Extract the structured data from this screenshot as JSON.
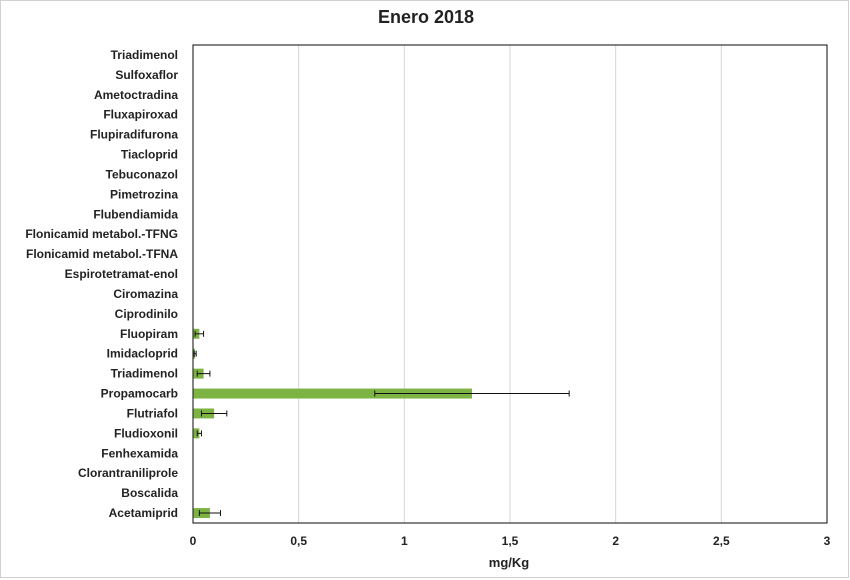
{
  "chart_data": {
    "type": "bar",
    "orientation": "horizontal",
    "title": "Enero 2018",
    "xlabel": "mg/Kg",
    "ylabel": "",
    "xlim": [
      0,
      3
    ],
    "x_ticks": [
      "0",
      "0,5",
      "1",
      "1,5",
      "2",
      "2,5",
      "3"
    ],
    "grid": "vertical",
    "legend": "none",
    "bar_color": "#7cb342",
    "categories": [
      "Triadimenol",
      "Sulfoxaflor",
      "Ametoctradina",
      "Fluxapiroxad",
      "Flupiradifurona",
      "Tiacloprid",
      "Tebuconazol",
      "Pimetrozina",
      "Flubendiamida",
      "Flonicamid metabol.-TFNG",
      "Flonicamid metabol.-TFNA",
      "Espirotetramat-enol",
      "Ciromazina",
      "Ciprodinilo",
      "Fluopiram",
      "Imidacloprid",
      "Triadimenol",
      "Propamocarb",
      "Flutriafol",
      "Fludioxonil",
      "Fenhexamida",
      "Clorantraniliprole",
      "Boscalida",
      "Acetamiprid"
    ],
    "values": [
      0,
      0,
      0,
      0,
      0,
      0,
      0,
      0,
      0,
      0,
      0,
      0,
      0,
      0,
      0.03,
      0.01,
      0.05,
      1.32,
      0.1,
      0.03,
      0,
      0,
      0,
      0.08
    ],
    "errors": [
      0,
      0,
      0,
      0,
      0,
      0,
      0,
      0,
      0,
      0,
      0,
      0,
      0,
      0,
      0.02,
      0.005,
      0.03,
      0.46,
      0.06,
      0.01,
      0,
      0,
      0,
      0.05
    ]
  }
}
